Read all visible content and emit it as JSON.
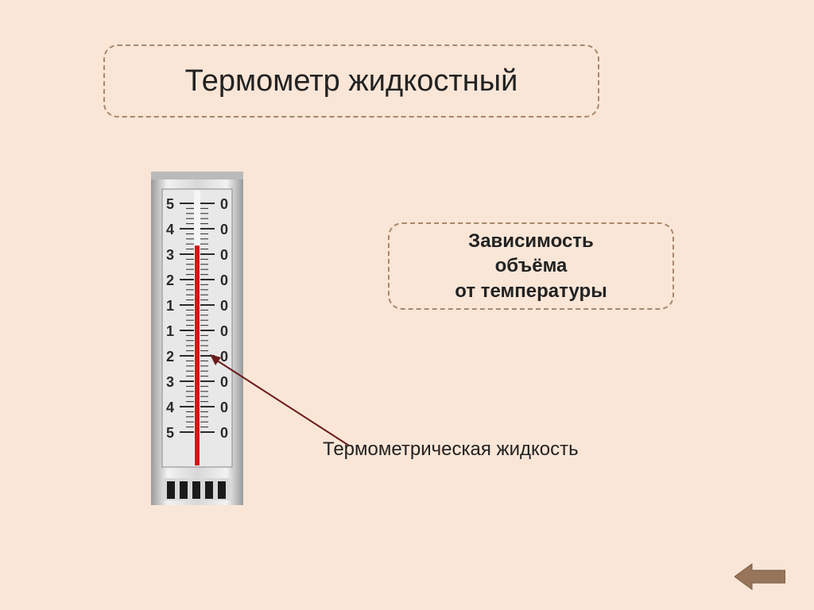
{
  "title": "Термометр жидкостный",
  "subtitle_line1": "Зависимость",
  "subtitle_line2": "объёма",
  "subtitle_line3": "от температуры",
  "caption": "Термометрическая жидкость",
  "thermometer": {
    "body_color": "#d8d8d8",
    "body_gradient_light": "#f2f2f2",
    "body_gradient_dark": "#9a9a9a",
    "face_color": "#e8e8e8",
    "tube_color": "#d01818",
    "scale_left_values": [
      "5",
      "4",
      "3",
      "2",
      "1",
      "1",
      "2",
      "3",
      "4",
      "5"
    ],
    "scale_right_values": [
      "0",
      "0",
      "0",
      "0",
      "0",
      "0",
      "0",
      "0",
      "0",
      "0"
    ],
    "scale_text_color": "#2a2a2a",
    "liquid_fill_ratio": 0.8,
    "tick_color": "#2a2a2a",
    "bottom_stripe_color": "#1a1a1a"
  },
  "arrow": {
    "color": "#6b1a1a",
    "stroke_width": 2
  },
  "back_button": {
    "fill": "#96755a",
    "border": "#7a5c44"
  },
  "colors": {
    "background": "#fae6d7",
    "box_border": "#a8876b",
    "text": "#222222"
  }
}
